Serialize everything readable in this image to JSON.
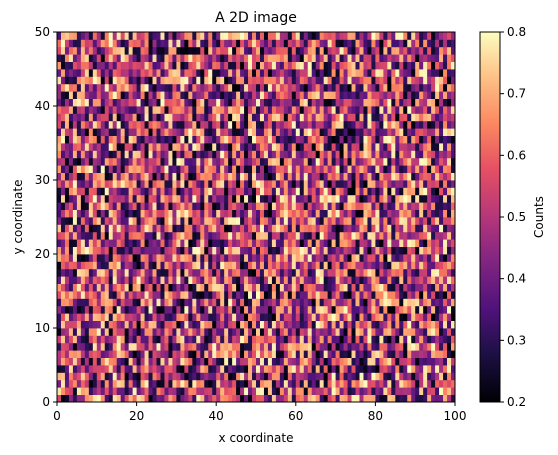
{
  "chart_data": {
    "type": "heatmap",
    "title": "A 2D image",
    "xlabel": "x coordinate",
    "ylabel": "y coordinate",
    "xlim": [
      0,
      100
    ],
    "ylim": [
      0,
      50
    ],
    "grid": [
      100,
      50
    ],
    "xticks": [
      "0",
      "20",
      "40",
      "60",
      "80",
      "100"
    ],
    "yticks": [
      "0",
      "10",
      "20",
      "30",
      "40",
      "50"
    ],
    "value_range": [
      0.2,
      0.8
    ],
    "colormap": "magma",
    "colorbar": {
      "label": "Counts",
      "ticks": [
        "0.2",
        "0.3",
        "0.4",
        "0.5",
        "0.6",
        "0.7",
        "0.8"
      ]
    },
    "note_values": "per-pixel random values uniformly distributed in [0.2, 0.8]"
  }
}
